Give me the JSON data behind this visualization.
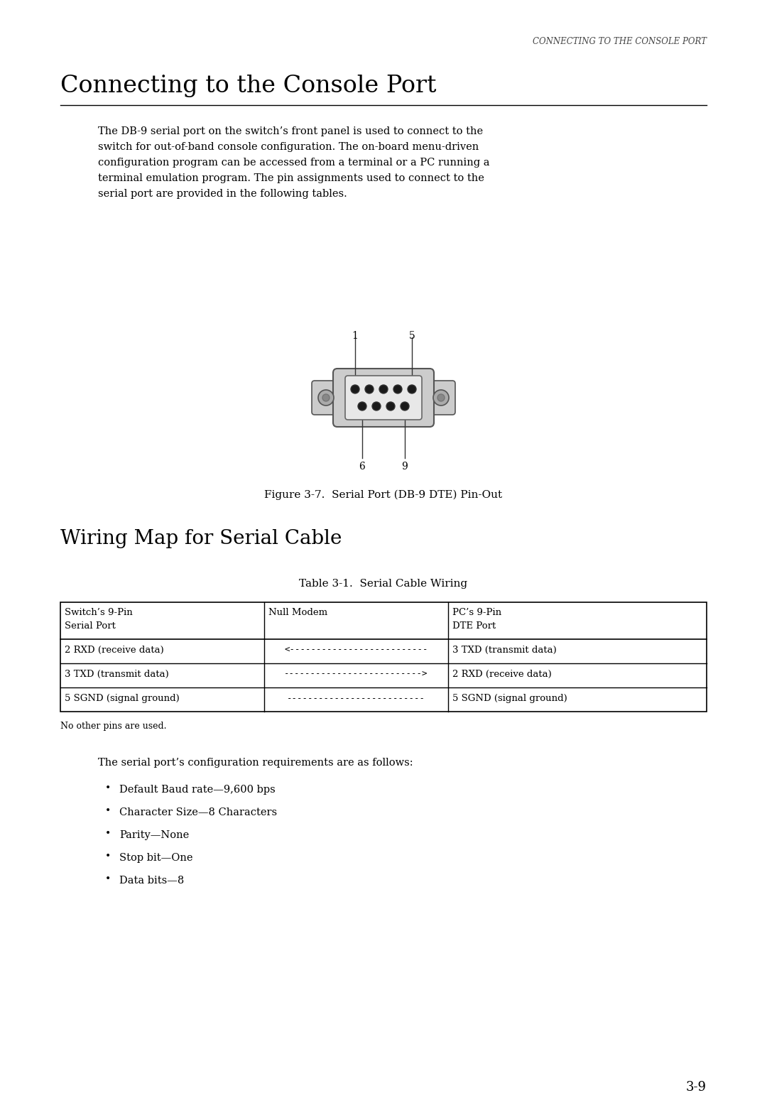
{
  "bg_color": "#ffffff",
  "header_text": "CONNECTING TO THE CONSOLE PORT",
  "main_title": "Connecting to the Console Port",
  "paragraph1_lines": [
    "The DB-9 serial port on the switch’s front panel is used to connect to the",
    "switch for out-of-band console configuration. The on-board menu-driven",
    "configuration program can be accessed from a terminal or a PC running a",
    "terminal emulation program. The pin assignments used to connect to the",
    "serial port are provided in the following tables."
  ],
  "figure_caption": "Figure 3-7.  Serial Port (DB-9 DTE) Pin-Out",
  "section_title": "Wiring Map for Serial Cable",
  "table_title": "Table 3-1.  Serial Cable Wiring",
  "table_headers": [
    "Switch’s 9-Pin\nSerial Port",
    "Null Modem",
    "PC’s 9-Pin\nDTE Port"
  ],
  "table_rows": [
    [
      "2 RXD (receive data)",
      "<--------------------------",
      "3 TXD (transmit data)"
    ],
    [
      "3 TXD (transmit data)",
      "-------------------------->",
      "2 RXD (receive data)"
    ],
    [
      "5 SGND (signal ground)",
      "--------------------------",
      "5 SGND (signal ground)"
    ]
  ],
  "table_note": "No other pins are used.",
  "config_intro": "The serial port’s configuration requirements are as follows:",
  "bullets": [
    "Default Baud rate—9,600 bps",
    "Character Size—8 Characters",
    "Parity—None",
    "Stop bit—One",
    "Data bits—8"
  ],
  "page_number": "3-9"
}
